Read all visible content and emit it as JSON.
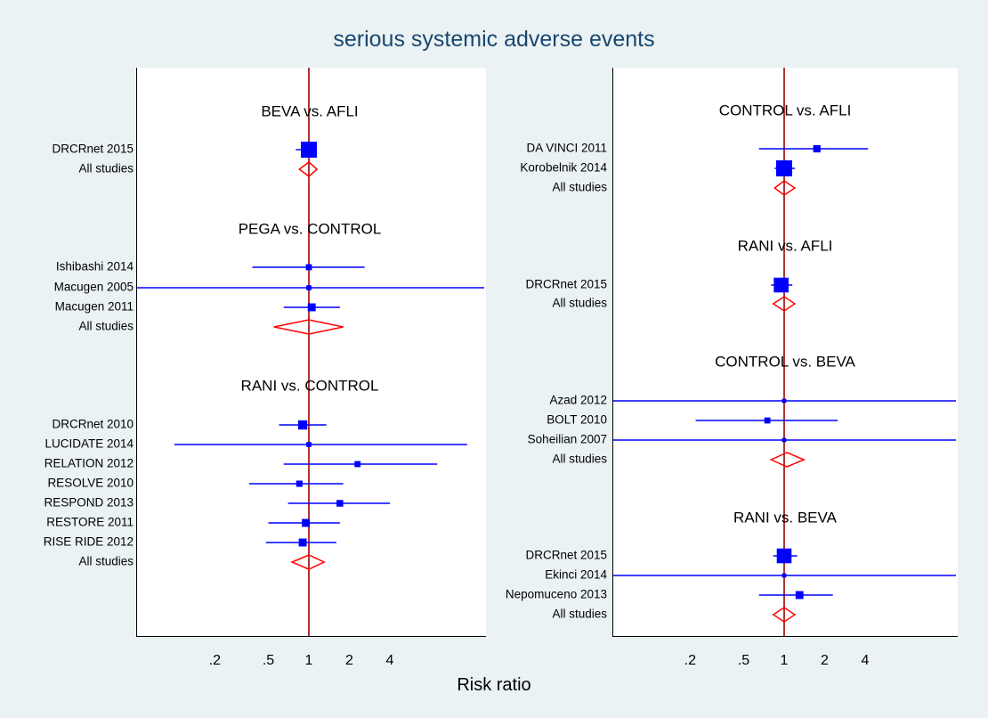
{
  "chart_data": {
    "type": "forest",
    "title": "serious systemic adverse events",
    "xlabel": "Risk ratio",
    "x_scale": "log",
    "x_ticks": [
      ".2",
      ".5",
      "1",
      "2",
      "4"
    ],
    "reference_line": 1,
    "colors": {
      "estimate": "#0000ff",
      "pooled": "#ff0000",
      "reference": "#990000",
      "title": "#1a476f"
    },
    "panels": [
      {
        "groups": [
          {
            "title": "BEVA vs. AFLI",
            "studies": [
              {
                "label": "DRCRnet 2015",
                "rr": 1.0,
                "lo": 0.8,
                "hi": 1.15,
                "weight": 1.0
              }
            ],
            "pooled": {
              "label": "All studies",
              "rr": 1.0,
              "lo": 0.85,
              "hi": 1.15
            }
          },
          {
            "title": "PEGA vs. CONTROL",
            "studies": [
              {
                "label": "Ishibashi 2014",
                "rr": 1.0,
                "lo": 0.38,
                "hi": 2.6,
                "weight": 0.2
              },
              {
                "label": "Macugen 2005",
                "rr": 1.0,
                "lo": 0.008,
                "hi": 120,
                "weight": 0.12
              },
              {
                "label": "Macugen 2011",
                "rr": 1.05,
                "lo": 0.65,
                "hi": 1.7,
                "weight": 0.35
              }
            ],
            "pooled": {
              "label": "All studies",
              "rr": 1.0,
              "lo": 0.55,
              "hi": 1.8
            }
          },
          {
            "title": "RANI vs. CONTROL",
            "studies": [
              {
                "label": "DRCRnet 2010",
                "rr": 0.9,
                "lo": 0.6,
                "hi": 1.35,
                "weight": 0.45
              },
              {
                "label": "LUCIDATE 2014",
                "rr": 1.0,
                "lo": 0.1,
                "hi": 15,
                "weight": 0.12
              },
              {
                "label": "RELATION 2012",
                "rr": 2.3,
                "lo": 0.65,
                "hi": 9,
                "weight": 0.2
              },
              {
                "label": "RESOLVE 2010",
                "rr": 0.85,
                "lo": 0.36,
                "hi": 1.8,
                "weight": 0.22
              },
              {
                "label": "RESPOND 2013",
                "rr": 1.7,
                "lo": 0.7,
                "hi": 4,
                "weight": 0.25
              },
              {
                "label": "RESTORE 2011",
                "rr": 0.95,
                "lo": 0.5,
                "hi": 1.7,
                "weight": 0.35
              },
              {
                "label": "RISE RIDE 2012",
                "rr": 0.9,
                "lo": 0.48,
                "hi": 1.6,
                "weight": 0.35
              }
            ],
            "pooled": {
              "label": "All studies",
              "rr": 1.0,
              "lo": 0.75,
              "hi": 1.3
            }
          }
        ]
      },
      {
        "groups": [
          {
            "title": "CONTROL vs. AFLI",
            "studies": [
              {
                "label": "DA VINCI 2011",
                "rr": 1.75,
                "lo": 0.65,
                "hi": 4.2,
                "weight": 0.3
              },
              {
                "label": "Korobelnik 2014",
                "rr": 1.0,
                "lo": 0.85,
                "hi": 1.2,
                "weight": 1.0
              }
            ],
            "pooled": {
              "label": "All studies",
              "rr": 1.0,
              "lo": 0.85,
              "hi": 1.2
            }
          },
          {
            "title": "RANI vs. AFLI",
            "studies": [
              {
                "label": "DRCRnet 2015",
                "rr": 0.95,
                "lo": 0.8,
                "hi": 1.15,
                "weight": 0.9
              }
            ],
            "pooled": {
              "label": "All studies",
              "rr": 1.0,
              "lo": 0.83,
              "hi": 1.2
            }
          },
          {
            "title": "CONTROL vs. BEVA",
            "studies": [
              {
                "label": "Azad 2012",
                "rr": 1.0,
                "lo": 0.01,
                "hi": 200,
                "weight": 0.05
              },
              {
                "label": "BOLT 2010",
                "rr": 0.75,
                "lo": 0.22,
                "hi": 2.5,
                "weight": 0.2
              },
              {
                "label": "Soheilian 2007",
                "rr": 1.0,
                "lo": 0.01,
                "hi": 200,
                "weight": 0.05
              }
            ],
            "pooled": {
              "label": "All studies",
              "rr": 1.05,
              "lo": 0.8,
              "hi": 1.4
            }
          },
          {
            "title": "RANI vs. BEVA",
            "studies": [
              {
                "label": "DRCRnet 2015",
                "rr": 1.0,
                "lo": 0.83,
                "hi": 1.25,
                "weight": 0.9
              },
              {
                "label": "Ekinci 2014",
                "rr": 1.0,
                "lo": 0.01,
                "hi": 200,
                "weight": 0.05
              },
              {
                "label": "Nepomuceno 2013",
                "rr": 1.3,
                "lo": 0.65,
                "hi": 2.3,
                "weight": 0.35
              }
            ],
            "pooled": {
              "label": "All studies",
              "rr": 1.0,
              "lo": 0.83,
              "hi": 1.2
            }
          }
        ]
      }
    ]
  }
}
